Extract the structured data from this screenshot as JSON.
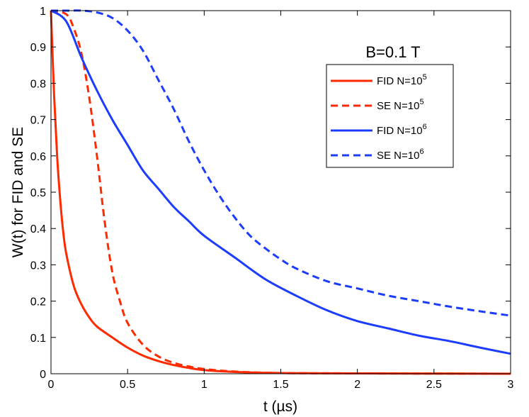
{
  "chart_data": {
    "type": "line",
    "title": "",
    "xlabel": "t (µs)",
    "ylabel": "W(t) for FID and SE",
    "xlim": [
      0,
      3
    ],
    "ylim": [
      0,
      1
    ],
    "xticks": [
      0,
      0.5,
      1,
      1.5,
      2,
      2.5,
      3
    ],
    "xtick_labels": [
      "0",
      "0.5",
      "1",
      "1.5",
      "2",
      "2.5",
      "3"
    ],
    "yticks": [
      0,
      0.1,
      0.2,
      0.3,
      0.4,
      0.5,
      0.6,
      0.7,
      0.8,
      0.9,
      1
    ],
    "ytick_labels": [
      "0",
      "0.1",
      "0.2",
      "0.3",
      "0.4",
      "0.5",
      "0.6",
      "0.7",
      "0.8",
      "0.9",
      "1"
    ],
    "annotation": "B=0.1 T",
    "legend_position": "top-right",
    "series": [
      {
        "name": "FID N=10^5",
        "label_text": "FID N=10",
        "label_exp": "5",
        "color": "#ff2a00",
        "dash": "solid",
        "x": [
          0,
          0.02,
          0.04,
          0.06,
          0.08,
          0.1,
          0.15,
          0.2,
          0.25,
          0.3,
          0.4,
          0.5,
          0.6,
          0.7,
          0.8,
          0.9,
          1.0,
          1.2,
          1.5,
          2.0,
          3.0
        ],
        "y": [
          1.0,
          0.77,
          0.6,
          0.48,
          0.39,
          0.33,
          0.24,
          0.19,
          0.155,
          0.13,
          0.1,
          0.072,
          0.05,
          0.035,
          0.024,
          0.016,
          0.01,
          0.005,
          0.002,
          0.001,
          0.0
        ]
      },
      {
        "name": "SE N=10^5",
        "label_text": "SE N=10",
        "label_exp": "5",
        "color": "#ff2a00",
        "dash": "dashed",
        "x": [
          0,
          0.1,
          0.15,
          0.2,
          0.25,
          0.3,
          0.35,
          0.4,
          0.45,
          0.5,
          0.6,
          0.7,
          0.8,
          0.9,
          1.0,
          1.2,
          1.5,
          2.0,
          3.0
        ],
        "y": [
          1.0,
          0.99,
          0.95,
          0.88,
          0.76,
          0.6,
          0.42,
          0.28,
          0.2,
          0.14,
          0.08,
          0.048,
          0.03,
          0.02,
          0.013,
          0.006,
          0.002,
          0.001,
          0.0
        ]
      },
      {
        "name": "FID N=10^6",
        "label_text": "FID N=10",
        "label_exp": "6",
        "color": "#1c3cff",
        "dash": "solid",
        "x": [
          0,
          0.1,
          0.2,
          0.3,
          0.4,
          0.5,
          0.6,
          0.7,
          0.8,
          0.9,
          1.0,
          1.2,
          1.4,
          1.6,
          1.8,
          2.0,
          2.2,
          2.4,
          2.6,
          2.8,
          3.0
        ],
        "y": [
          1.0,
          0.97,
          0.87,
          0.78,
          0.7,
          0.63,
          0.56,
          0.51,
          0.46,
          0.42,
          0.38,
          0.32,
          0.26,
          0.215,
          0.175,
          0.145,
          0.125,
          0.105,
          0.09,
          0.072,
          0.055
        ]
      },
      {
        "name": "SE N=10^6",
        "label_text": "SE N=10",
        "label_exp": "6",
        "color": "#1c3cff",
        "dash": "dashed",
        "x": [
          0,
          0.1,
          0.2,
          0.3,
          0.4,
          0.5,
          0.6,
          0.7,
          0.8,
          0.9,
          1.0,
          1.1,
          1.2,
          1.3,
          1.4,
          1.5,
          1.6,
          1.8,
          2.0,
          2.2,
          2.4,
          2.6,
          2.8,
          3.0
        ],
        "y": [
          1.0,
          1.0,
          1.0,
          0.995,
          0.98,
          0.945,
          0.89,
          0.81,
          0.73,
          0.64,
          0.56,
          0.49,
          0.43,
          0.38,
          0.345,
          0.315,
          0.29,
          0.255,
          0.235,
          0.215,
          0.2,
          0.185,
          0.172,
          0.16
        ]
      }
    ]
  }
}
